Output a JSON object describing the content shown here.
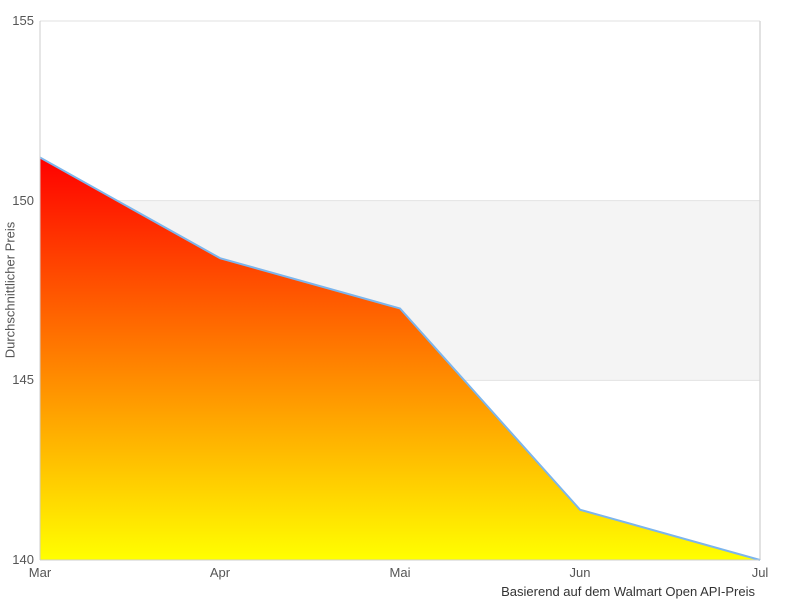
{
  "chart_data": {
    "type": "area",
    "categories": [
      "Mar",
      "Apr",
      "Mai",
      "Jun",
      "Jul"
    ],
    "values": [
      151.2,
      148.4,
      147.0,
      141.4,
      140.0
    ],
    "title": "",
    "xlabel": "",
    "ylabel": "Durchschnittlicher Preis",
    "caption": "Basierend auf dem Walmart Open API-Preis",
    "ylim": [
      140,
      155
    ],
    "yticks": [
      140,
      145,
      150,
      155
    ],
    "ytick_labels": [
      "140",
      "145",
      "150",
      "155"
    ],
    "grid": "horizontal-only",
    "legend": "none",
    "plot_band": {
      "from": 145,
      "to": 150,
      "color": "#f4f4f4"
    },
    "colors": {
      "line": "#7cb5ec",
      "area_gradient_top": "#ff0000",
      "area_gradient_bottom": "#ffff00",
      "gridline": "#e2e2e2",
      "axis_line": "#cccccc",
      "plot_border": "#d8d8d8",
      "tick_label": "#555555",
      "caption_text": "#333333",
      "background": "#ffffff"
    }
  }
}
